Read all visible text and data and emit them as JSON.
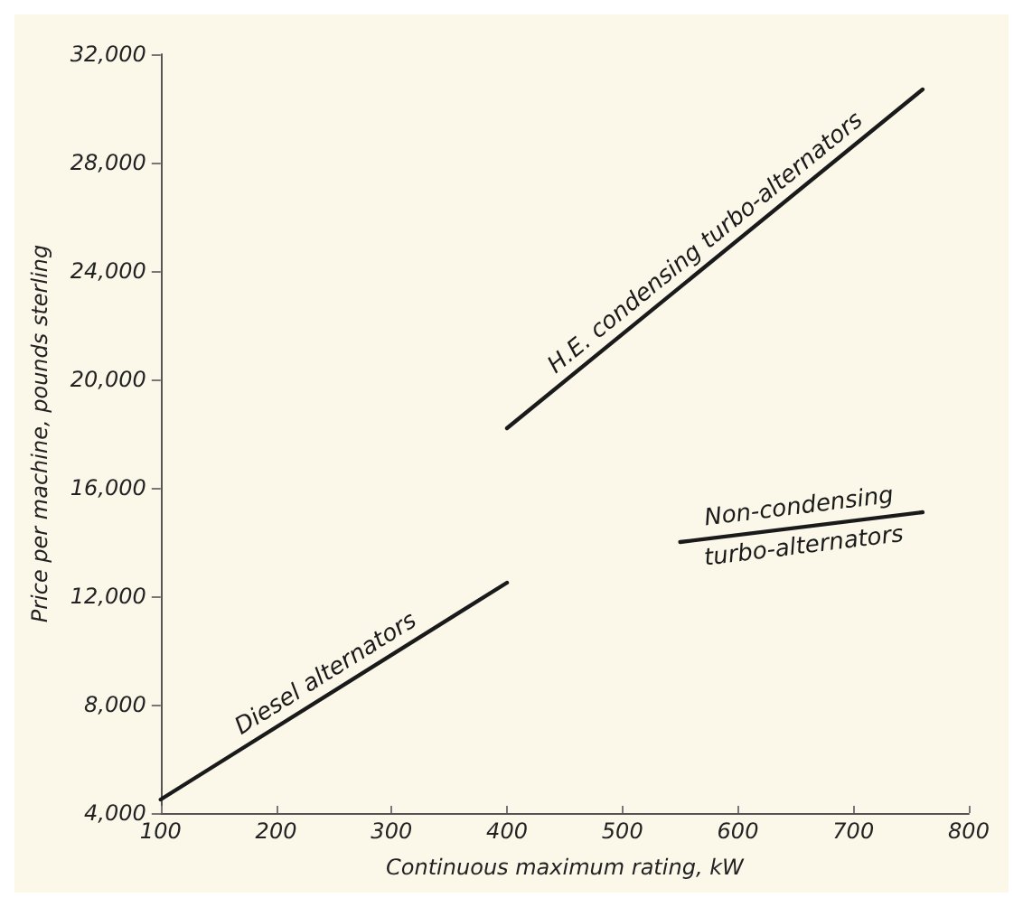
{
  "chart_data": {
    "type": "line",
    "xlabel": "Continuous maximum rating, kW",
    "ylabel": "Price per machine, pounds sterling",
    "xlim": [
      100,
      800
    ],
    "xticks": [
      100,
      200,
      300,
      400,
      500,
      600,
      700,
      800
    ],
    "ylim": [
      4000,
      32000
    ],
    "yticks": [
      {
        "value": 4000,
        "label": "4,000"
      },
      {
        "value": 8000,
        "label": "8,000"
      },
      {
        "value": 12000,
        "label": "12,000"
      },
      {
        "value": 16000,
        "label": "16,000"
      },
      {
        "value": 20000,
        "label": "20,000"
      },
      {
        "value": 24000,
        "label": "24,000"
      },
      {
        "value": 28000,
        "label": "28,000"
      },
      {
        "value": 32000,
        "label": "32,000"
      }
    ],
    "grid": false,
    "legend": false,
    "marker": "none",
    "line_style": "solid",
    "series": [
      {
        "name": "Diesel alternators",
        "color": "#1a1a1a",
        "x": [
          100,
          400
        ],
        "values": [
          4500,
          12500
        ]
      },
      {
        "name": "H.E. condensing turbo-alternators",
        "color": "#1a1a1a",
        "x": [
          400,
          760
        ],
        "values": [
          18200,
          30700
        ]
      },
      {
        "name": "Non-condensing\nturbo-alternators",
        "color": "#1a1a1a",
        "x": [
          550,
          760
        ],
        "values": [
          14000,
          15100
        ]
      }
    ]
  }
}
